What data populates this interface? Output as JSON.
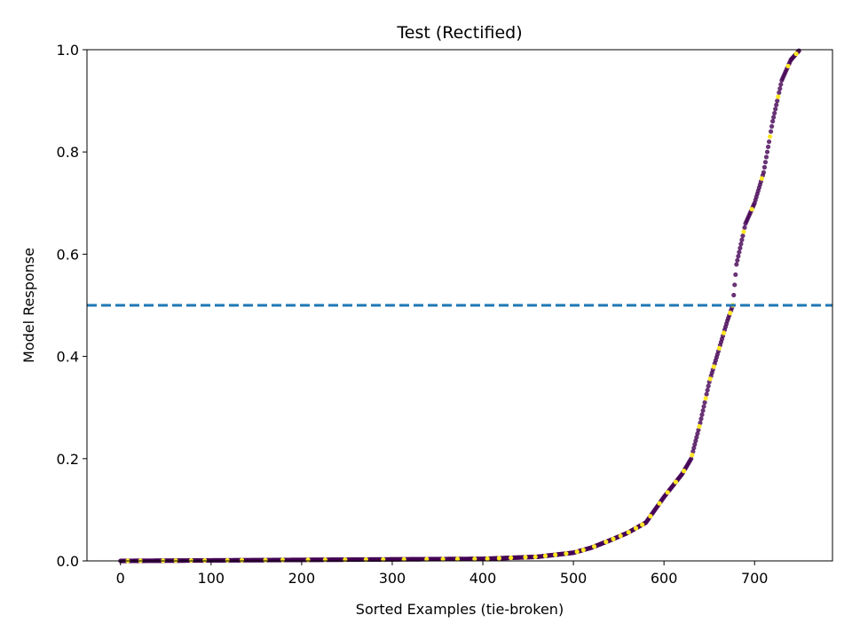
{
  "chart_data": {
    "type": "scatter",
    "title": "Test (Rectified)",
    "xlabel": "Sorted Examples (tie-broken)",
    "ylabel": "Model Response",
    "xlim": [
      -37,
      786
    ],
    "ylim": [
      0,
      1
    ],
    "xticks": [
      0,
      100,
      200,
      300,
      400,
      500,
      600,
      700
    ],
    "yticks": [
      "0.0",
      "0.2",
      "0.4",
      "0.6",
      "0.8",
      "1.0"
    ],
    "threshold": {
      "y": 0.5,
      "style": "dashed",
      "color": "#1f77b4"
    },
    "grid": false,
    "legend": "none",
    "colors": {
      "class_0": "#440154",
      "class_1": "#fde725"
    },
    "n_points": 750,
    "curve_x": [
      0,
      400,
      460,
      500,
      520,
      540,
      560,
      580,
      590,
      600,
      620,
      630,
      640,
      650,
      660,
      670,
      676,
      680,
      690,
      700,
      710,
      720,
      730,
      740,
      750
    ],
    "curve_y": [
      0.0,
      0.004,
      0.008,
      0.016,
      0.026,
      0.04,
      0.055,
      0.075,
      0.1,
      0.125,
      0.17,
      0.2,
      0.27,
      0.35,
      0.41,
      0.47,
      0.5,
      0.58,
      0.66,
      0.7,
      0.76,
      0.86,
      0.94,
      0.98,
      1.0
    ],
    "positive_x": [
      8,
      22,
      47,
      61,
      78,
      93,
      118,
      134,
      160,
      179,
      207,
      226,
      248,
      271,
      290,
      313,
      338,
      356,
      372,
      391,
      405,
      418,
      431,
      447,
      458,
      469,
      480,
      492,
      504,
      511,
      523,
      536,
      544,
      552,
      561,
      569,
      576,
      585,
      595,
      604,
      613,
      622,
      631,
      639,
      646,
      651,
      655,
      661,
      666,
      673,
      676,
      688,
      697,
      708,
      717,
      726,
      737,
      746
    ]
  }
}
